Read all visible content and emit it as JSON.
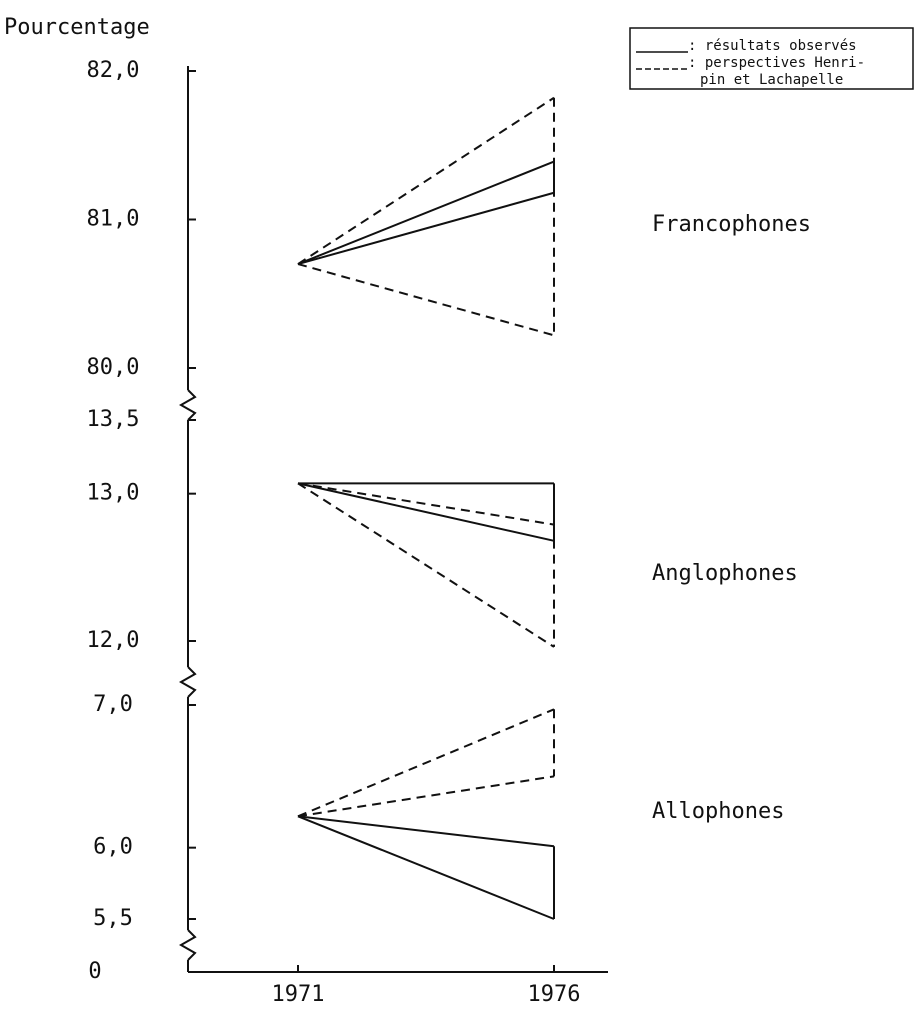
{
  "chart_data": {
    "type": "line",
    "y_label": "Pourcentage",
    "categories": [
      "1971",
      "1976"
    ],
    "origin_tick": 0,
    "legend": [
      {
        "style": "solid",
        "label": [
          ": résultats observés"
        ]
      },
      {
        "style": "dashed",
        "label": [
          ": perspectives Henri-",
          "pin et Lachapelle"
        ]
      }
    ],
    "panels": [
      {
        "label": "Francophones",
        "ylim": [
          80,
          82
        ],
        "yticks": [
          {
            "value": 80,
            "label": "80,0"
          },
          {
            "value": 81,
            "label": "81,0"
          },
          {
            "value": 82,
            "label": "82,0"
          }
        ],
        "series": [
          {
            "style": "dashed",
            "values": [
              80.7,
              81.82
            ]
          },
          {
            "style": "solid",
            "values": [
              80.7,
              81.39
            ]
          },
          {
            "style": "solid",
            "values": [
              80.7,
              81.18
            ]
          },
          {
            "style": "dashed",
            "values": [
              80.7,
              80.22
            ]
          }
        ]
      },
      {
        "label": "Anglophones",
        "ylim": [
          12,
          13.5
        ],
        "yticks": [
          {
            "value": 12,
            "label": "12,0"
          },
          {
            "value": 13,
            "label": "13,0"
          },
          {
            "value": 13.5,
            "label": "13,5"
          }
        ],
        "series": [
          {
            "style": "solid",
            "values": [
              13.07,
              13.07
            ]
          },
          {
            "style": "dashed",
            "values": [
              13.07,
              12.79
            ]
          },
          {
            "style": "solid",
            "values": [
              13.07,
              12.68
            ]
          },
          {
            "style": "dashed",
            "values": [
              13.07,
              11.96
            ]
          }
        ]
      },
      {
        "label": "Allophones",
        "ylim": [
          5.5,
          7
        ],
        "yticks": [
          {
            "value": 5.5,
            "label": "5,5"
          },
          {
            "value": 6,
            "label": "6,0"
          },
          {
            "value": 7,
            "label": "7,0"
          }
        ],
        "series": [
          {
            "style": "dashed",
            "values": [
              6.22,
              6.97
            ]
          },
          {
            "style": "dashed",
            "values": [
              6.22,
              6.5
            ]
          },
          {
            "style": "solid",
            "values": [
              6.22,
              6.01
            ]
          },
          {
            "style": "solid",
            "values": [
              6.22,
              5.5
            ]
          }
        ]
      }
    ]
  }
}
